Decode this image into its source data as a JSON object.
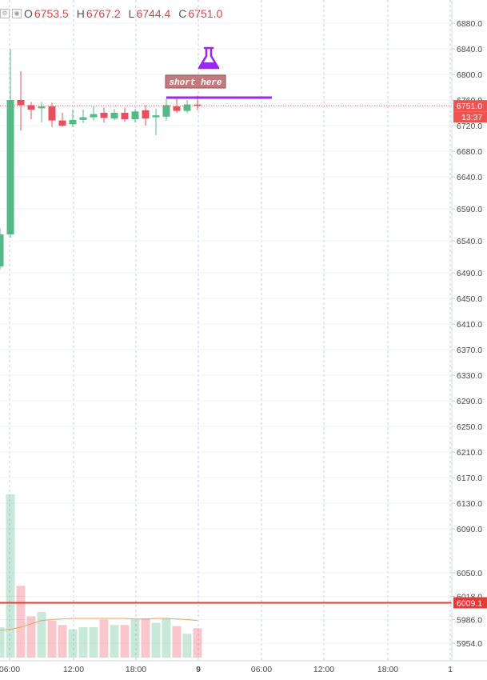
{
  "legend": {
    "open_label": "O",
    "open": "6753.5",
    "high_label": "H",
    "high": "6767.2",
    "low_label": "L",
    "low": "6744.4",
    "close_label": "C",
    "close": "6751.0"
  },
  "price_badge": {
    "value": "6751.0",
    "countdown": "13:37",
    "color": "#ef5350"
  },
  "hline_badge": {
    "value": "6009.1",
    "color": "#e53935"
  },
  "annotation": {
    "text": "short here",
    "icon": "flask-icon",
    "color": "#9c27f0"
  },
  "colors": {
    "up": "#53b987",
    "down": "#eb4d5c",
    "grid": "#eef2f7",
    "ma": "#f0a05a"
  },
  "chart_data": {
    "type": "candlestick",
    "y_axis_ticks": [
      6880.0,
      6840.0,
      6800.0,
      6760.0,
      6720.0,
      6680.0,
      6640.0,
      6590.0,
      6540.0,
      6490.0,
      6450.0,
      6410.0,
      6370.0,
      6330.0,
      6290.0,
      6250.0,
      6210.0,
      6170.0,
      6130.0,
      6090.0,
      6050.0,
      6018.0,
      5986.0,
      5954.0
    ],
    "x_axis_ticks": [
      "06:00",
      "12:00",
      "18:00",
      "9",
      "06:00",
      "12:00",
      "18:00",
      "1"
    ],
    "candles": [
      {
        "time": "04:00",
        "open": 6500,
        "high": 6560,
        "low": 6495,
        "close": 6550
      },
      {
        "time": "05:00",
        "open": 6550,
        "high": 6840,
        "low": 6545,
        "close": 6760
      },
      {
        "time": "06:00",
        "open": 6760,
        "high": 6805,
        "low": 6712,
        "close": 6752
      },
      {
        "time": "07:00",
        "open": 6752,
        "high": 6757,
        "low": 6730,
        "close": 6745
      },
      {
        "time": "08:00",
        "open": 6747,
        "high": 6757,
        "low": 6725,
        "close": 6750
      },
      {
        "time": "09:00",
        "open": 6750,
        "high": 6756,
        "low": 6718,
        "close": 6728
      },
      {
        "time": "10:00",
        "open": 6728,
        "high": 6740,
        "low": 6718,
        "close": 6720
      },
      {
        "time": "11:00",
        "open": 6722,
        "high": 6745,
        "low": 6718,
        "close": 6729
      },
      {
        "time": "12:00",
        "open": 6729,
        "high": 6745,
        "low": 6724,
        "close": 6733
      },
      {
        "time": "13:00",
        "open": 6733,
        "high": 6750,
        "low": 6728,
        "close": 6738
      },
      {
        "time": "14:00",
        "open": 6740,
        "high": 6748,
        "low": 6725,
        "close": 6732
      },
      {
        "time": "15:00",
        "open": 6731,
        "high": 6746,
        "low": 6728,
        "close": 6740
      },
      {
        "time": "16:00",
        "open": 6740,
        "high": 6748,
        "low": 6726,
        "close": 6730
      },
      {
        "time": "17:00",
        "open": 6730,
        "high": 6746,
        "low": 6725,
        "close": 6742
      },
      {
        "time": "18:00",
        "open": 6744,
        "high": 6752,
        "low": 6720,
        "close": 6731
      },
      {
        "time": "19:00",
        "open": 6733,
        "high": 6746,
        "low": 6705,
        "close": 6736
      },
      {
        "time": "20:00",
        "open": 6734,
        "high": 6762,
        "low": 6728,
        "close": 6752
      },
      {
        "time": "21:00",
        "open": 6750,
        "high": 6762,
        "low": 6740,
        "close": 6743
      },
      {
        "time": "22:00",
        "open": 6743,
        "high": 6760,
        "low": 6740,
        "close": 6753
      },
      {
        "time": "23:00",
        "open": 6753,
        "high": 6767,
        "low": 6744,
        "close": 6751
      }
    ],
    "volume": [
      28,
      150,
      66,
      38,
      42,
      34,
      30,
      26,
      28,
      28,
      35,
      30,
      30,
      35,
      36,
      32,
      36,
      29,
      22,
      27
    ],
    "volume_ma": [
      25,
      26,
      28,
      31,
      34,
      35,
      35.5,
      36,
      36,
      36,
      36,
      36,
      36,
      35.5,
      35.5,
      36,
      36,
      35.5,
      35,
      34
    ],
    "horizontal_line": 6009.1,
    "annotation_line": 6765
  }
}
